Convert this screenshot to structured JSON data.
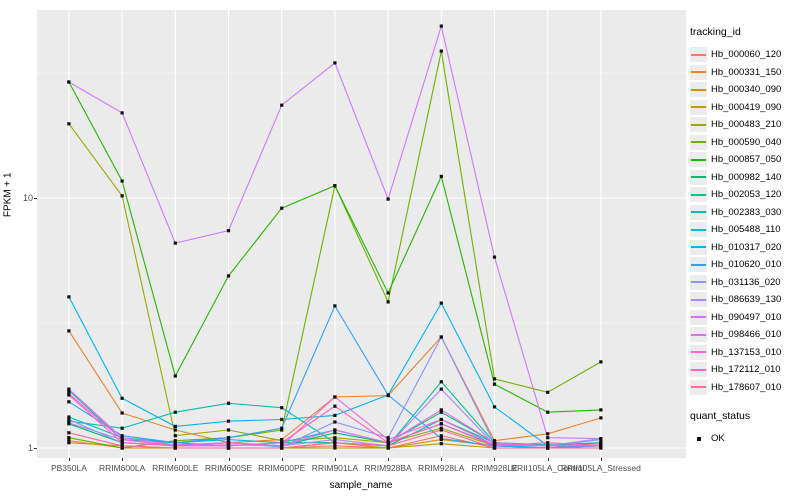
{
  "chart_data": {
    "type": "line",
    "title": "",
    "xlabel": "sample_name",
    "ylabel": "FPKM + 1",
    "y_scale": "log10",
    "ylim": [
      1,
      56
    ],
    "yticks": [
      {
        "label": "1",
        "value": 1
      },
      {
        "label": "10",
        "value": 10
      }
    ],
    "y_minor_breaks": [
      3.1623,
      31.623
    ],
    "grid": "on",
    "panel_bg": "#EBEBEB",
    "grid_color": "#FFFFFF",
    "marker_color": "#111111",
    "categories": [
      "PB350LA",
      "RRIM600LA",
      "RRIM600LE",
      "RRIM600SE",
      "RRIM600PE",
      "RRIM901LA",
      "RRIM928BA",
      "RRIM928LA",
      "RRIM928LE",
      "RRII105LA_Control",
      "RRII105LA_Stressed"
    ],
    "series": [
      {
        "name": "Hb_000060_120",
        "color": "#F8766D",
        "values": [
          1.07,
          1.0,
          1.0,
          1.0,
          1.0,
          1.02,
          1.0,
          1.12,
          1.0,
          1.0,
          1.0
        ]
      },
      {
        "name": "Hb_000331_150",
        "color": "#E9842C",
        "values": [
          2.94,
          1.38,
          1.18,
          1.05,
          1.08,
          1.6,
          1.62,
          2.78,
          1.07,
          1.14,
          1.32
        ]
      },
      {
        "name": "Hb_000340_090",
        "color": "#D69100",
        "values": [
          1.1,
          1.0,
          1.0,
          1.0,
          1.0,
          1.05,
          1.0,
          1.08,
          1.02,
          1.0,
          1.05
        ]
      },
      {
        "name": "Hb_000419_090",
        "color": "#BE9C00",
        "values": [
          1.05,
          1.02,
          1.0,
          1.0,
          1.0,
          1.0,
          1.0,
          1.04,
          1.0,
          1.0,
          1.02
        ]
      },
      {
        "name": "Hb_000483_210",
        "color": "#9CA700",
        "values": [
          19.8,
          10.2,
          1.12,
          1.18,
          1.07,
          1.1,
          1.05,
          1.2,
          1.02,
          1.0,
          1.02
        ]
      },
      {
        "name": "Hb_000590_040",
        "color": "#6FB000",
        "values": [
          1.1,
          1.0,
          1.07,
          1.1,
          1.18,
          11.2,
          3.84,
          38.7,
          1.89,
          1.67,
          2.21
        ]
      },
      {
        "name": "Hb_000857_050",
        "color": "#24B700",
        "values": [
          29.1,
          11.7,
          1.94,
          4.88,
          9.1,
          11.2,
          4.17,
          12.2,
          1.8,
          1.39,
          1.42
        ]
      },
      {
        "name": "Hb_000982_140",
        "color": "#00BE67",
        "values": [
          1.25,
          1.05,
          1.02,
          1.05,
          1.02,
          1.15,
          1.05,
          1.39,
          1.05,
          1.02,
          1.05
        ]
      },
      {
        "name": "Hb_002053_120",
        "color": "#00C08D",
        "values": [
          1.7,
          1.08,
          1.05,
          1.02,
          1.05,
          1.05,
          1.02,
          1.84,
          1.05,
          1.02,
          1.02
        ]
      },
      {
        "name": "Hb_002383_030",
        "color": "#00C0AF",
        "values": [
          1.28,
          1.2,
          1.39,
          1.51,
          1.45,
          1.05,
          1.02,
          1.3,
          1.05,
          1.03,
          1.05
        ]
      },
      {
        "name": "Hb_005488_110",
        "color": "#00BCD6",
        "values": [
          1.33,
          1.1,
          1.05,
          1.08,
          1.05,
          1.18,
          1.05,
          1.25,
          1.03,
          1.0,
          1.03
        ]
      },
      {
        "name": "Hb_010317_020",
        "color": "#00B3F2",
        "values": [
          4.02,
          1.58,
          1.22,
          1.28,
          1.3,
          1.35,
          1.63,
          3.8,
          1.46,
          1.02,
          1.02
        ]
      },
      {
        "name": "Hb_010620_010",
        "color": "#29A3FF",
        "values": [
          1.53,
          1.12,
          1.05,
          1.1,
          1.2,
          3.7,
          1.63,
          1.09,
          1.02,
          1.0,
          1.02
        ]
      },
      {
        "name": "Hb_031136_020",
        "color": "#8B93FF",
        "values": [
          1.3,
          1.05,
          1.02,
          1.05,
          1.01,
          1.27,
          1.1,
          2.78,
          1.04,
          1.02,
          1.08
        ]
      },
      {
        "name": "Hb_086639_130",
        "color": "#AE87FF",
        "values": [
          1.26,
          1.08,
          1.02,
          1.05,
          1.02,
          1.08,
          1.02,
          1.72,
          1.03,
          1.02,
          1.09
        ]
      },
      {
        "name": "Hb_090497_010",
        "color": "#CD79FF",
        "values": [
          29.1,
          21.9,
          6.6,
          7.4,
          23.5,
          34.7,
          9.9,
          48.7,
          5.8,
          1.1,
          1.09
        ]
      },
      {
        "name": "Hb_098466_010",
        "color": "#E56DF5",
        "values": [
          1.72,
          1.1,
          1.03,
          1.05,
          1.02,
          1.18,
          1.05,
          1.42,
          1.05,
          1.02,
          1.03
        ]
      },
      {
        "name": "Hb_137153_010",
        "color": "#F465DE",
        "values": [
          1.65,
          1.08,
          1.02,
          1.03,
          1.02,
          1.6,
          1.08,
          1.3,
          1.03,
          1.02,
          1.02
        ]
      },
      {
        "name": "Hb_172112_010",
        "color": "#FF62BF",
        "values": [
          1.63,
          1.05,
          1.02,
          1.02,
          1.05,
          1.47,
          1.05,
          1.25,
          1.02,
          1.05,
          1.02
        ]
      },
      {
        "name": "Hb_178607_010",
        "color": "#FF6A98",
        "values": [
          1.15,
          1.02,
          1.0,
          1.0,
          1.0,
          1.05,
          1.02,
          1.18,
          1.0,
          1.0,
          1.0
        ]
      }
    ],
    "legend": {
      "tracking_title": "tracking_id",
      "quant_title": "quant_status",
      "quant_items": [
        {
          "label": "OK"
        }
      ],
      "position": "right"
    }
  }
}
